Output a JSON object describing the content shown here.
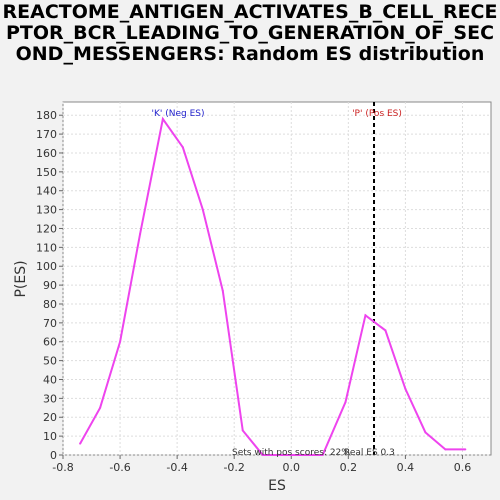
{
  "chart_data": {
    "type": "line",
    "title": "REACTOME_ANTIGEN_ACTIVATES_B_CELL_RECEPTOR_BCR_LEADING_TO_GENERATION_OF_SECOND_MESSENGERS: Random ES distribution",
    "xlabel": "ES",
    "ylabel": "P(ES)",
    "xlim": [
      -0.8,
      0.7
    ],
    "ylim": [
      0,
      187
    ],
    "xticks": [
      -0.8,
      -0.6,
      -0.4,
      -0.2,
      0.0,
      0.2,
      0.4,
      0.6
    ],
    "xtick_labels": [
      "-0.8",
      "-0.6",
      "-0.4",
      "-0.2",
      "0.0",
      "0.2",
      "0.4",
      "0.6"
    ],
    "yticks": [
      0,
      10,
      20,
      30,
      40,
      50,
      60,
      70,
      80,
      90,
      100,
      110,
      120,
      130,
      140,
      150,
      160,
      170,
      180
    ],
    "ytick_labels": [
      "0",
      "10",
      "20",
      "30",
      "40",
      "50",
      "60",
      "70",
      "80",
      "90",
      "100",
      "110",
      "120",
      "130",
      "140",
      "150",
      "160",
      "170",
      "180"
    ],
    "grid": true,
    "series": [
      {
        "color": "#ee44ee",
        "x": [
          -0.74,
          -0.67,
          -0.6,
          -0.53,
          -0.45,
          -0.38,
          -0.31,
          -0.24,
          -0.17,
          -0.1,
          -0.03,
          0.04,
          0.11,
          0.19,
          0.26,
          0.33,
          0.4,
          0.47,
          0.54,
          0.61
        ],
        "y": [
          6,
          25,
          60,
          117,
          178,
          163,
          130,
          87,
          13,
          0,
          0,
          0,
          0,
          28,
          74,
          66,
          35,
          12,
          3,
          3
        ]
      }
    ],
    "vline": {
      "x": 0.29,
      "color": "#000000",
      "style": "dashed"
    },
    "annotations": {
      "neg_label": "'K' (Neg ES)",
      "neg_color": "#2222cc",
      "pos_label": "'P' (Pos ES)",
      "pos_color": "#cc2222",
      "sets_text": "Sets with pos scores: 22%",
      "real_es_text": "Real ES 0.3"
    }
  }
}
